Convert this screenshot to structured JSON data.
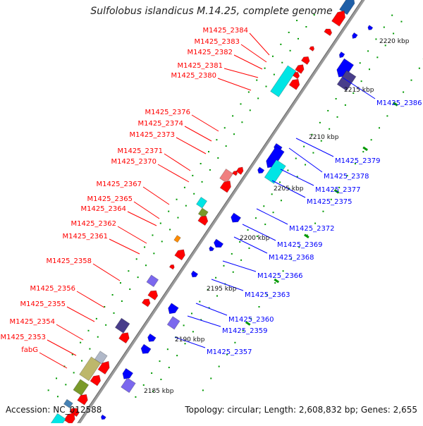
{
  "title": "Sulfolobus islandicus M.14.25, complete genome",
  "accession": "Accession: NC_012588",
  "topology": "Topology: circular; Length: 2,608,832 bp; Genes: 2,655",
  "colors": {
    "forward_gene": "#ff0000",
    "reverse_gene": "#0000ff",
    "backbone": "#999999",
    "tick": "#009900",
    "cyan": "#00e5e5",
    "pink": "#f08080",
    "olive": "#7a9a2a",
    "khaki": "#bdb76b",
    "slate": "#483d8b",
    "lavender": "#7b68ee",
    "steel": "#4682b4",
    "orange": "#ff8c00",
    "grey": "#b0b8c8"
  },
  "scale_labels": [
    "2220 kbp",
    "2215 kbp",
    "2210 kbp",
    "2205 kbp",
    "2200 kbp",
    "2195 kbp",
    "2190 kbp",
    "2185 kbp"
  ],
  "left_labels": [
    "M1425_2384",
    "M1425_2383",
    "M1425_2382",
    "M1425_2381",
    "M1425_2380",
    "M1425_2376",
    "M1425_2374",
    "M1425_2373",
    "M1425_2371",
    "M1425_2370",
    "M1425_2367",
    "M1425_2365",
    "M1425_2364",
    "M1425_2362",
    "M1425_2361",
    "M1425_2358",
    "M1425_2356",
    "M1425_2355",
    "M1425_2354",
    "M1425_2353",
    "fabG"
  ],
  "right_labels": [
    "M1425_2386",
    "M1425_2379",
    "M1425_2378",
    "M1425_2377",
    "M1425_2375",
    "M1425_2372",
    "M1425_2369",
    "M1425_2368",
    "M1425_2366",
    "M1425_2363",
    "M1425_2360",
    "M1425_2359",
    "M1425_2357"
  ]
}
